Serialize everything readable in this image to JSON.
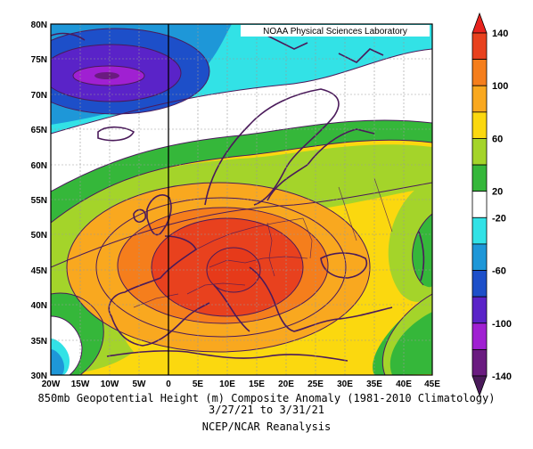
{
  "source_label": "NOAA Physical Sciences Laboratory",
  "title": "850mb Geopotential Height (m) Composite Anomaly (1981-2010 Climatology)",
  "date_range": "3/27/21  to 3/31/21",
  "dataset": "NCEP/NCAR Reanalysis",
  "map": {
    "lon_range": [
      -20,
      45
    ],
    "lat_range": [
      30,
      80
    ],
    "lat_ticks": [
      "30N",
      "35N",
      "40N",
      "45N",
      "50N",
      "55N",
      "60N",
      "65N",
      "70N",
      "75N",
      "80N"
    ],
    "lon_ticks": [
      "20W",
      "15W",
      "10W",
      "5W",
      "0",
      "5E",
      "10E",
      "15E",
      "20E",
      "25E",
      "30E",
      "35E",
      "40E",
      "45E"
    ],
    "features": {
      "positive_center": {
        "lon": 11,
        "lat": 45,
        "value": 140
      },
      "negative_center": {
        "lon": -9,
        "lat": 73,
        "value": -100
      },
      "negative_southwest": {
        "lon": -20,
        "lat": 30,
        "value": -60
      }
    }
  },
  "colorbar": {
    "labels": [
      "140",
      "100",
      "60",
      "20",
      "-20",
      "-60",
      "-100",
      "-140"
    ],
    "bands": [
      {
        "range": [
          120,
          140
        ],
        "color": "#e8411e"
      },
      {
        "range": [
          100,
          120
        ],
        "color": "#f57e1c"
      },
      {
        "range": [
          80,
          100
        ],
        "color": "#f9a81f"
      },
      {
        "range": [
          60,
          80
        ],
        "color": "#fbd80f"
      },
      {
        "range": [
          40,
          60
        ],
        "color": "#a4d42a"
      },
      {
        "range": [
          20,
          40
        ],
        "color": "#35b73a"
      },
      {
        "range": [
          -20,
          20
        ],
        "color": "#ffffff"
      },
      {
        "range": [
          -40,
          -20
        ],
        "color": "#32e2e6"
      },
      {
        "range": [
          -60,
          -40
        ],
        "color": "#1e97d8"
      },
      {
        "range": [
          -80,
          -60
        ],
        "color": "#1d4fc9"
      },
      {
        "range": [
          -100,
          -80
        ],
        "color": "#5a23c8"
      },
      {
        "range": [
          -120,
          -100
        ],
        "color": "#a020d2"
      },
      {
        "range": [
          -140,
          -120
        ],
        "color": "#6a1b80"
      }
    ],
    "top_arrow_color": "#e8231e",
    "bottom_arrow_color": "#4a1a5a"
  }
}
